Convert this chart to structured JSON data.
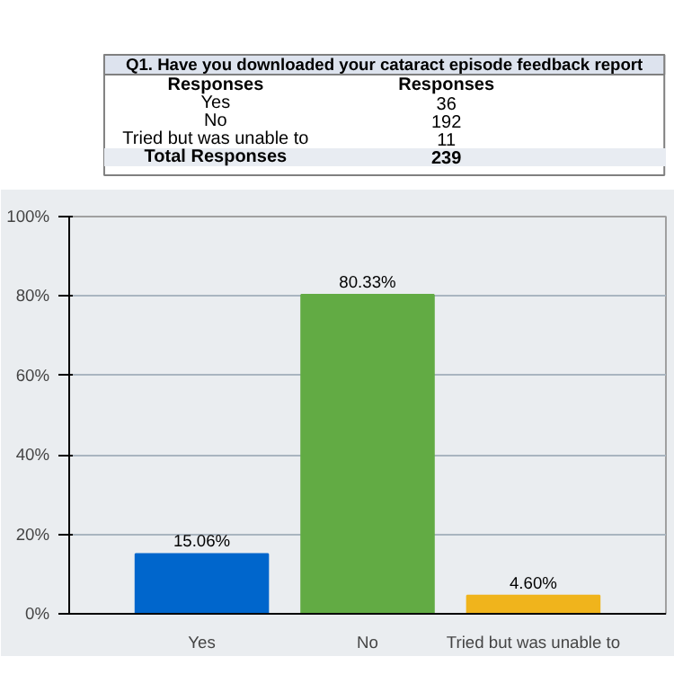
{
  "chart_data": {
    "type": "bar",
    "title": "Q1. Have you downloaded your cataract episode feedback report",
    "annotations": [
      "Responses",
      "Responses",
      "Yes",
      "36",
      "No",
      "192",
      "Tried but was unable to",
      "11",
      "Total Responses",
      "239"
    ],
    "categories": [
      "Yes",
      "No",
      "Tried but was unable to"
    ],
    "values": [
      15.06,
      80.33,
      4.6
    ],
    "colors": [
      "#0066cc",
      "#62ab44",
      "#f0b41c"
    ],
    "value_labels": [
      "15.06%",
      "80.33%",
      "4.60%"
    ],
    "ylim": [
      0,
      100
    ],
    "yticks": [
      {
        "value": 0,
        "label": "0%"
      },
      {
        "value": 20,
        "label": "20%"
      },
      {
        "value": 40,
        "label": "40%"
      },
      {
        "value": 60,
        "label": "60%"
      },
      {
        "value": 80,
        "label": "80%"
      },
      {
        "value": 100,
        "label": "100%"
      }
    ],
    "grid": "y"
  }
}
